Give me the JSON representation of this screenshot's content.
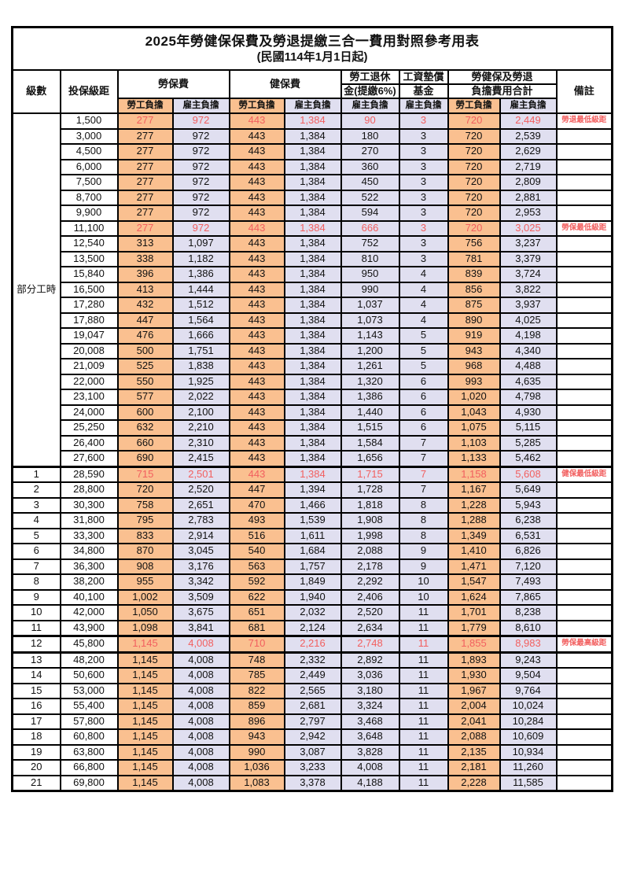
{
  "title": "2025年勞健保保費及勞退提繳三合一費用對照參考用表",
  "subtitle": "(民國114年1月1日起)",
  "header": {
    "level": "級數",
    "bracket": "投保級距",
    "labor_insurance": "勞保費",
    "health_insurance": "健保費",
    "pension_line1": "勞工退休",
    "pension_line2": "金(提繳6%)",
    "wage_fund_line1": "工資墊償",
    "wage_fund_line2": "基金",
    "total_line1": "勞健保及勞退",
    "total_line2": "負擔費用合計",
    "remark": "備註",
    "employee": "勞工負擔",
    "employer": "雇主負擔"
  },
  "part_time_label": "部分工時",
  "part_time_row_count": 23,
  "colors": {
    "employee_cell_bg": "#FAC090",
    "employer_cell_bg": "#E0DFF0",
    "highlight_text": "#F25F5F",
    "border": "#000000"
  },
  "value_column_styles": [
    "orange",
    "lav",
    "orange",
    "lav",
    "lav",
    "lav",
    "orange",
    "lav"
  ],
  "rows": [
    {
      "level": "",
      "bracket": "1,500",
      "values": [
        "277",
        "972",
        "443",
        "1,384",
        "90",
        "3",
        "720",
        "2,449"
      ],
      "remark": "勞退最低級距",
      "red": true
    },
    {
      "level": "",
      "bracket": "3,000",
      "values": [
        "277",
        "972",
        "443",
        "1,384",
        "180",
        "3",
        "720",
        "2,539"
      ],
      "remark": "",
      "red": false
    },
    {
      "level": "",
      "bracket": "4,500",
      "values": [
        "277",
        "972",
        "443",
        "1,384",
        "270",
        "3",
        "720",
        "2,629"
      ],
      "remark": "",
      "red": false
    },
    {
      "level": "",
      "bracket": "6,000",
      "values": [
        "277",
        "972",
        "443",
        "1,384",
        "360",
        "3",
        "720",
        "2,719"
      ],
      "remark": "",
      "red": false
    },
    {
      "level": "",
      "bracket": "7,500",
      "values": [
        "277",
        "972",
        "443",
        "1,384",
        "450",
        "3",
        "720",
        "2,809"
      ],
      "remark": "",
      "red": false
    },
    {
      "level": "",
      "bracket": "8,700",
      "values": [
        "277",
        "972",
        "443",
        "1,384",
        "522",
        "3",
        "720",
        "2,881"
      ],
      "remark": "",
      "red": false
    },
    {
      "level": "",
      "bracket": "9,900",
      "values": [
        "277",
        "972",
        "443",
        "1,384",
        "594",
        "3",
        "720",
        "2,953"
      ],
      "remark": "",
      "red": false
    },
    {
      "level": "",
      "bracket": "11,100",
      "values": [
        "277",
        "972",
        "443",
        "1,384",
        "666",
        "3",
        "720",
        "3,025"
      ],
      "remark": "勞保最低級距",
      "red": true
    },
    {
      "level": "",
      "bracket": "12,540",
      "values": [
        "313",
        "1,097",
        "443",
        "1,384",
        "752",
        "3",
        "756",
        "3,237"
      ],
      "remark": "",
      "red": false
    },
    {
      "level": "",
      "bracket": "13,500",
      "values": [
        "338",
        "1,182",
        "443",
        "1,384",
        "810",
        "3",
        "781",
        "3,379"
      ],
      "remark": "",
      "red": false
    },
    {
      "level": "",
      "bracket": "15,840",
      "values": [
        "396",
        "1,386",
        "443",
        "1,384",
        "950",
        "4",
        "839",
        "3,724"
      ],
      "remark": "",
      "red": false
    },
    {
      "level": "",
      "bracket": "16,500",
      "values": [
        "413",
        "1,444",
        "443",
        "1,384",
        "990",
        "4",
        "856",
        "3,822"
      ],
      "remark": "",
      "red": false
    },
    {
      "level": "",
      "bracket": "17,280",
      "values": [
        "432",
        "1,512",
        "443",
        "1,384",
        "1,037",
        "4",
        "875",
        "3,937"
      ],
      "remark": "",
      "red": false
    },
    {
      "level": "",
      "bracket": "17,880",
      "values": [
        "447",
        "1,564",
        "443",
        "1,384",
        "1,073",
        "4",
        "890",
        "4,025"
      ],
      "remark": "",
      "red": false
    },
    {
      "level": "",
      "bracket": "19,047",
      "values": [
        "476",
        "1,666",
        "443",
        "1,384",
        "1,143",
        "5",
        "919",
        "4,198"
      ],
      "remark": "",
      "red": false
    },
    {
      "level": "",
      "bracket": "20,008",
      "values": [
        "500",
        "1,751",
        "443",
        "1,384",
        "1,200",
        "5",
        "943",
        "4,340"
      ],
      "remark": "",
      "red": false
    },
    {
      "level": "",
      "bracket": "21,009",
      "values": [
        "525",
        "1,838",
        "443",
        "1,384",
        "1,261",
        "5",
        "968",
        "4,488"
      ],
      "remark": "",
      "red": false
    },
    {
      "level": "",
      "bracket": "22,000",
      "values": [
        "550",
        "1,925",
        "443",
        "1,384",
        "1,320",
        "6",
        "993",
        "4,635"
      ],
      "remark": "",
      "red": false
    },
    {
      "level": "",
      "bracket": "23,100",
      "values": [
        "577",
        "2,022",
        "443",
        "1,384",
        "1,386",
        "6",
        "1,020",
        "4,798"
      ],
      "remark": "",
      "red": false
    },
    {
      "level": "",
      "bracket": "24,000",
      "values": [
        "600",
        "2,100",
        "443",
        "1,384",
        "1,440",
        "6",
        "1,043",
        "4,930"
      ],
      "remark": "",
      "red": false
    },
    {
      "level": "",
      "bracket": "25,250",
      "values": [
        "632",
        "2,210",
        "443",
        "1,384",
        "1,515",
        "6",
        "1,075",
        "5,115"
      ],
      "remark": "",
      "red": false
    },
    {
      "level": "",
      "bracket": "26,400",
      "values": [
        "660",
        "2,310",
        "443",
        "1,384",
        "1,584",
        "7",
        "1,103",
        "5,285"
      ],
      "remark": "",
      "red": false
    },
    {
      "level": "",
      "bracket": "27,600",
      "values": [
        "690",
        "2,415",
        "443",
        "1,384",
        "1,656",
        "7",
        "1,133",
        "5,462"
      ],
      "remark": "",
      "red": false
    },
    {
      "level": "1",
      "bracket": "28,590",
      "values": [
        "715",
        "2,501",
        "443",
        "1,384",
        "1,715",
        "7",
        "1,158",
        "5,608"
      ],
      "remark": "健保最低級距",
      "red": true,
      "thickTop": true
    },
    {
      "level": "2",
      "bracket": "28,800",
      "values": [
        "720",
        "2,520",
        "447",
        "1,394",
        "1,728",
        "7",
        "1,167",
        "5,649"
      ],
      "remark": "",
      "red": false
    },
    {
      "level": "3",
      "bracket": "30,300",
      "values": [
        "758",
        "2,651",
        "470",
        "1,466",
        "1,818",
        "8",
        "1,228",
        "5,943"
      ],
      "remark": "",
      "red": false
    },
    {
      "level": "4",
      "bracket": "31,800",
      "values": [
        "795",
        "2,783",
        "493",
        "1,539",
        "1,908",
        "8",
        "1,288",
        "6,238"
      ],
      "remark": "",
      "red": false
    },
    {
      "level": "5",
      "bracket": "33,300",
      "values": [
        "833",
        "2,914",
        "516",
        "1,611",
        "1,998",
        "8",
        "1,349",
        "6,531"
      ],
      "remark": "",
      "red": false
    },
    {
      "level": "6",
      "bracket": "34,800",
      "values": [
        "870",
        "3,045",
        "540",
        "1,684",
        "2,088",
        "9",
        "1,410",
        "6,826"
      ],
      "remark": "",
      "red": false
    },
    {
      "level": "7",
      "bracket": "36,300",
      "values": [
        "908",
        "3,176",
        "563",
        "1,757",
        "2,178",
        "9",
        "1,471",
        "7,120"
      ],
      "remark": "",
      "red": false
    },
    {
      "level": "8",
      "bracket": "38,200",
      "values": [
        "955",
        "3,342",
        "592",
        "1,849",
        "2,292",
        "10",
        "1,547",
        "7,493"
      ],
      "remark": "",
      "red": false
    },
    {
      "level": "9",
      "bracket": "40,100",
      "values": [
        "1,002",
        "3,509",
        "622",
        "1,940",
        "2,406",
        "10",
        "1,624",
        "7,865"
      ],
      "remark": "",
      "red": false
    },
    {
      "level": "10",
      "bracket": "42,000",
      "values": [
        "1,050",
        "3,675",
        "651",
        "2,032",
        "2,520",
        "11",
        "1,701",
        "8,238"
      ],
      "remark": "",
      "red": false
    },
    {
      "level": "11",
      "bracket": "43,900",
      "values": [
        "1,098",
        "3,841",
        "681",
        "2,124",
        "2,634",
        "11",
        "1,779",
        "8,610"
      ],
      "remark": "",
      "red": false
    },
    {
      "level": "12",
      "bracket": "45,800",
      "values": [
        "1,145",
        "4,008",
        "710",
        "2,216",
        "2,748",
        "11",
        "1,855",
        "8,983"
      ],
      "remark": "勞保最高級距",
      "red": true,
      "thickTop": true,
      "thickBottom": true
    },
    {
      "level": "13",
      "bracket": "48,200",
      "values": [
        "1,145",
        "4,008",
        "748",
        "2,332",
        "2,892",
        "11",
        "1,893",
        "9,243"
      ],
      "remark": "",
      "red": false
    },
    {
      "level": "14",
      "bracket": "50,600",
      "values": [
        "1,145",
        "4,008",
        "785",
        "2,449",
        "3,036",
        "11",
        "1,930",
        "9,504"
      ],
      "remark": "",
      "red": false
    },
    {
      "level": "15",
      "bracket": "53,000",
      "values": [
        "1,145",
        "4,008",
        "822",
        "2,565",
        "3,180",
        "11",
        "1,967",
        "9,764"
      ],
      "remark": "",
      "red": false
    },
    {
      "level": "16",
      "bracket": "55,400",
      "values": [
        "1,145",
        "4,008",
        "859",
        "2,681",
        "3,324",
        "11",
        "2,004",
        "10,024"
      ],
      "remark": "",
      "red": false
    },
    {
      "level": "17",
      "bracket": "57,800",
      "values": [
        "1,145",
        "4,008",
        "896",
        "2,797",
        "3,468",
        "11",
        "2,041",
        "10,284"
      ],
      "remark": "",
      "red": false
    },
    {
      "level": "18",
      "bracket": "60,800",
      "values": [
        "1,145",
        "4,008",
        "943",
        "2,942",
        "3,648",
        "11",
        "2,088",
        "10,609"
      ],
      "remark": "",
      "red": false
    },
    {
      "level": "19",
      "bracket": "63,800",
      "values": [
        "1,145",
        "4,008",
        "990",
        "3,087",
        "3,828",
        "11",
        "2,135",
        "10,934"
      ],
      "remark": "",
      "red": false
    },
    {
      "level": "20",
      "bracket": "66,800",
      "values": [
        "1,145",
        "4,008",
        "1,036",
        "3,233",
        "4,008",
        "11",
        "2,181",
        "11,260"
      ],
      "remark": "",
      "red": false
    },
    {
      "level": "21",
      "bracket": "69,800",
      "values": [
        "1,145",
        "4,008",
        "1,083",
        "3,378",
        "4,188",
        "11",
        "2,228",
        "11,585"
      ],
      "remark": "",
      "red": false
    }
  ]
}
